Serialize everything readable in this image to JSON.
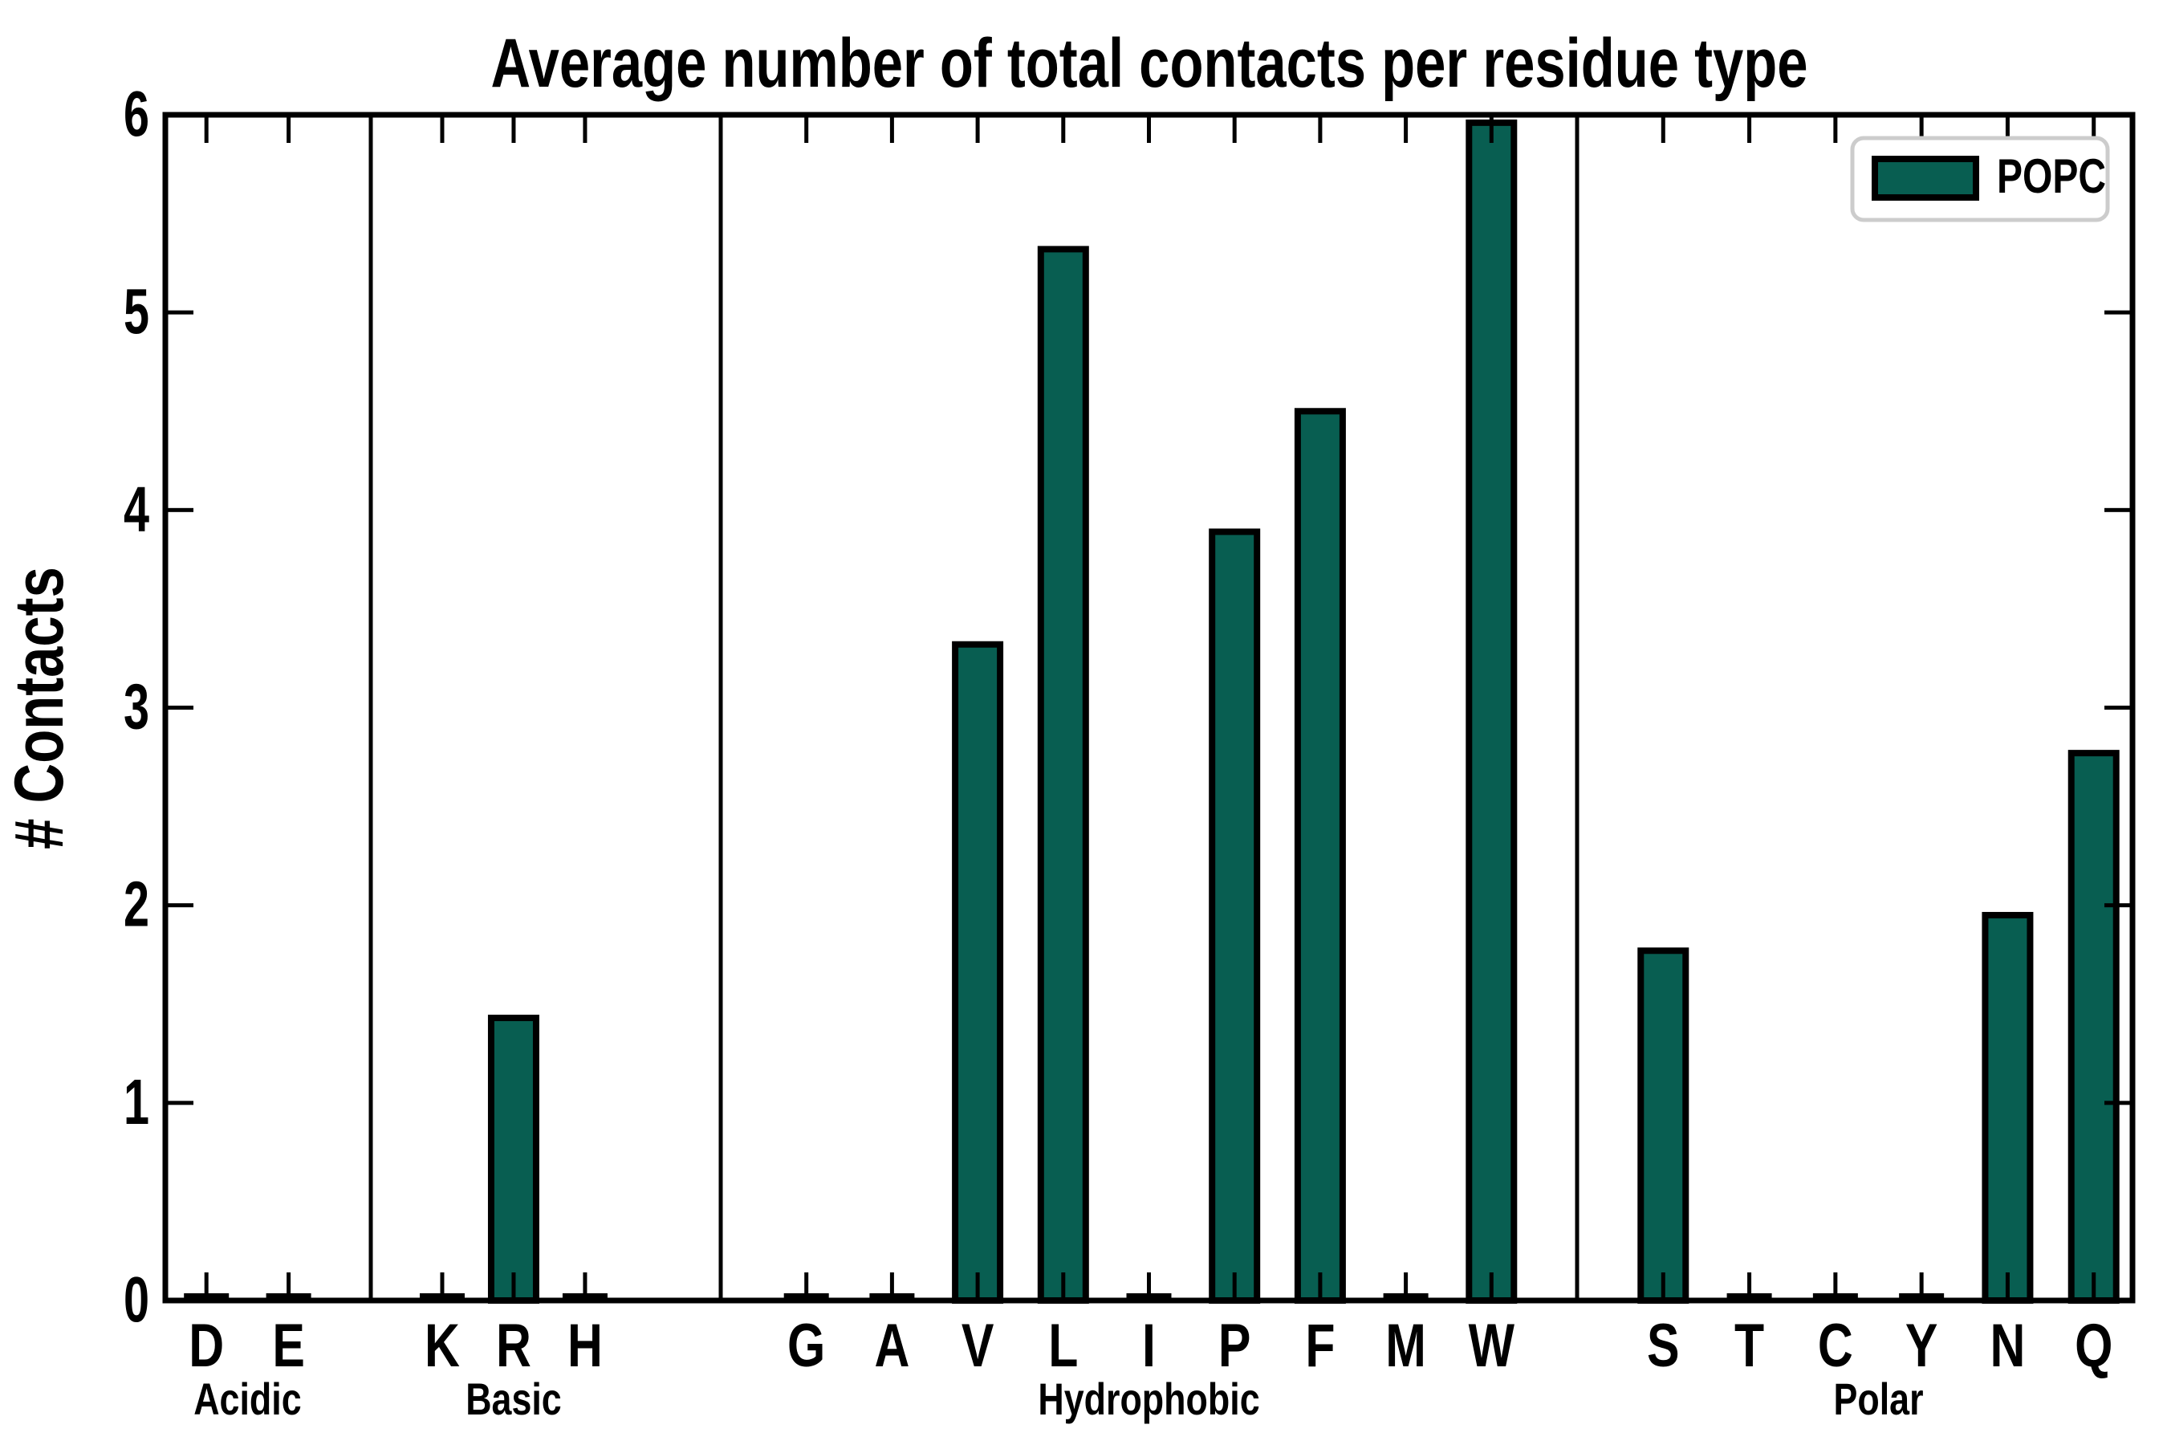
{
  "chart_data": {
    "type": "bar",
    "title": "Average number of total contacts per residue type",
    "ylabel": "# Contacts",
    "xlabel": "",
    "ylim": [
      0,
      6
    ],
    "yticks": [
      0,
      1,
      2,
      3,
      4,
      5,
      6
    ],
    "grid": false,
    "legend": {
      "label": "POPC",
      "position": "upper right"
    },
    "bar_color": "#085e51",
    "bar_edge_color": "#000000",
    "axis_color": "#000000",
    "legend_border_color": "#cccccc",
    "groups": [
      {
        "name": "Acidic",
        "categories": [
          "D",
          "E"
        ],
        "values": [
          0,
          0
        ]
      },
      {
        "name": "Basic",
        "categories": [
          "K",
          "R",
          "H"
        ],
        "values": [
          0,
          1.43,
          0
        ]
      },
      {
        "name": "Hydrophobic",
        "categories": [
          "G",
          "A",
          "V",
          "L",
          "I",
          "P",
          "F",
          "M",
          "W"
        ],
        "values": [
          0,
          0,
          3.32,
          5.32,
          0,
          3.89,
          4.5,
          0,
          5.96
        ]
      },
      {
        "name": "Polar",
        "categories": [
          "S",
          "T",
          "C",
          "Y",
          "N",
          "Q"
        ],
        "values": [
          1.77,
          0,
          0,
          0,
          1.95,
          2.77
        ]
      }
    ]
  }
}
